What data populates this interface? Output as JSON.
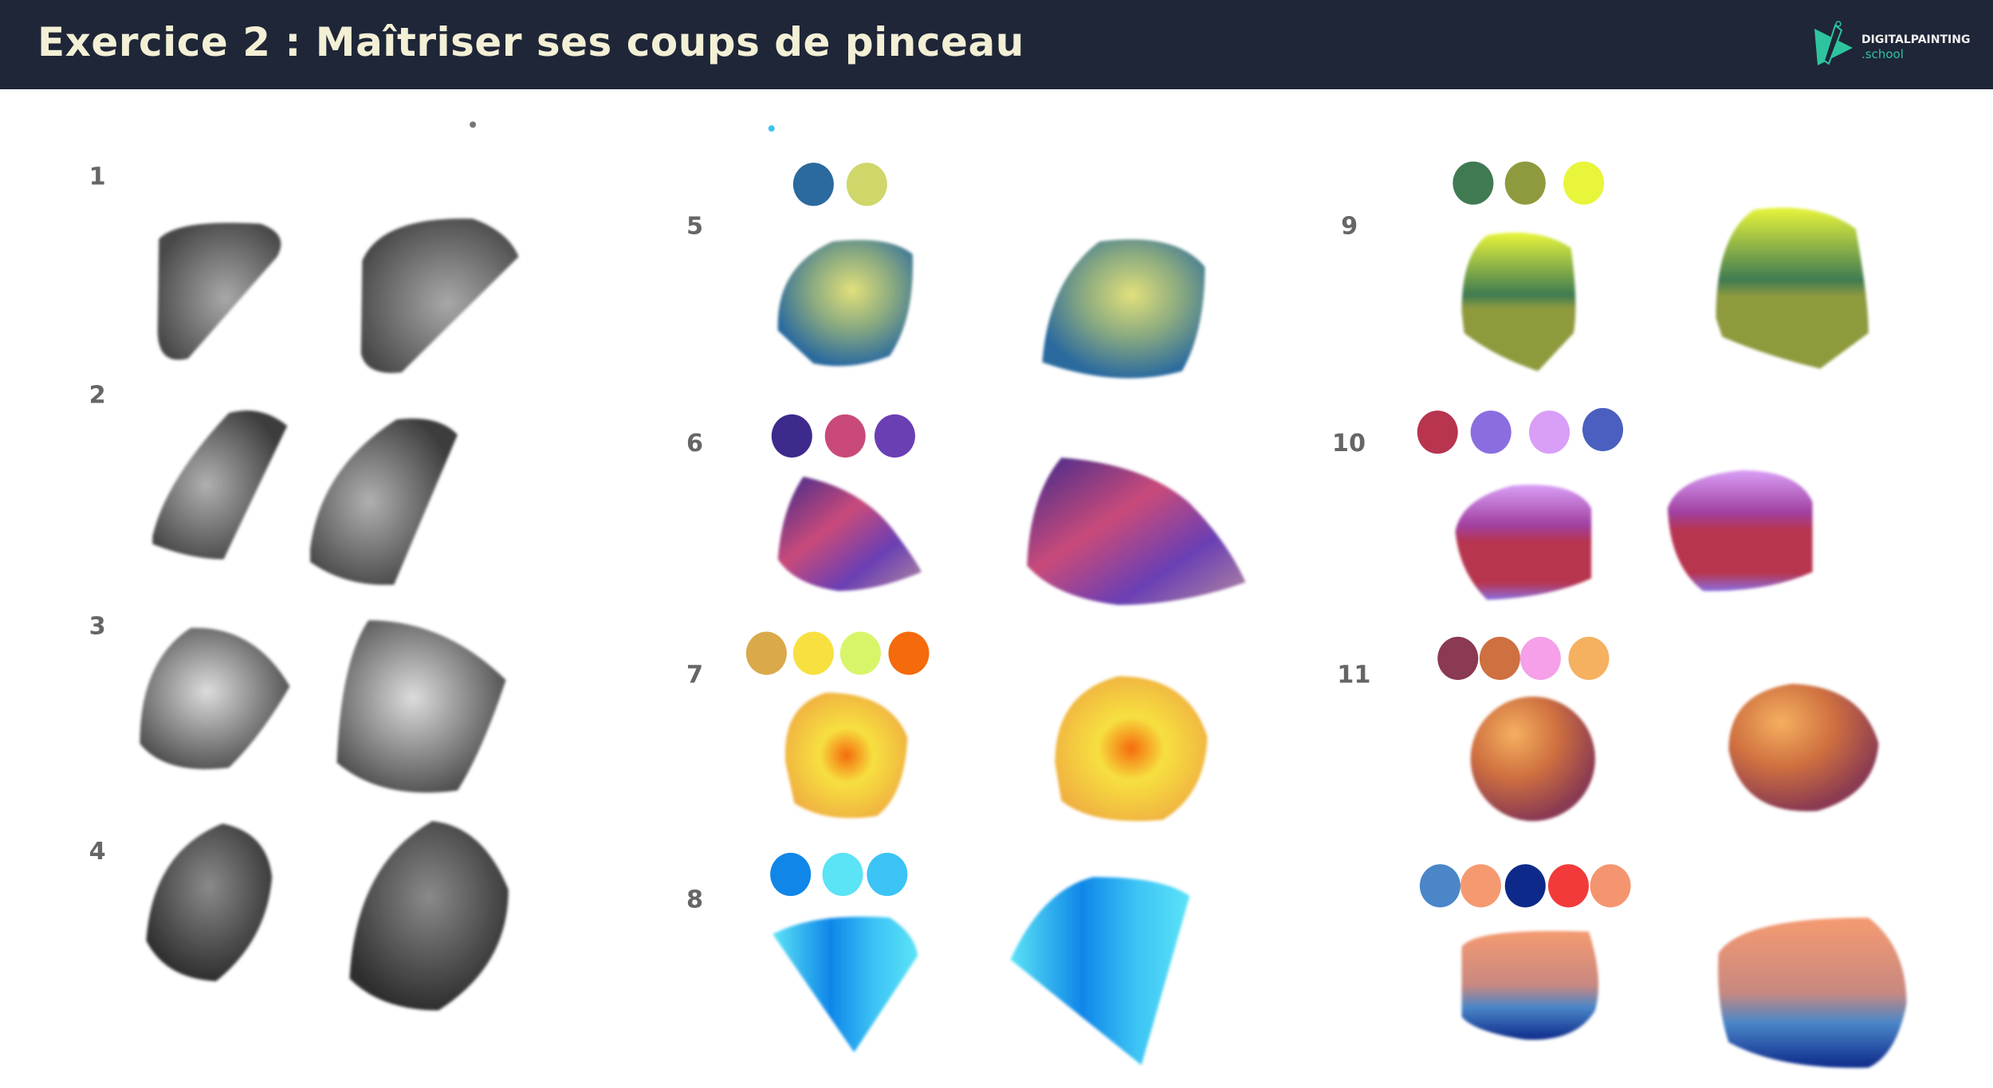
{
  "header": {
    "title": "Exercice 2 : Maîtriser ses coups de pinceau",
    "logo_name": "DIGITALPAINTING",
    "logo_suffix": ".school"
  },
  "exercises": [
    {
      "number": "1"
    },
    {
      "number": "2"
    },
    {
      "number": "3"
    },
    {
      "number": "4"
    },
    {
      "number": "5",
      "palette": [
        "#2b6a9e",
        "#cfd66a"
      ]
    },
    {
      "number": "6",
      "palette": [
        "#3e2a8c",
        "#c94a7a",
        "#6a3fb4"
      ]
    },
    {
      "number": "7",
      "palette": [
        "#d9a94a",
        "#f7e040",
        "#d8f56a",
        "#f46a0c"
      ]
    },
    {
      "number": "8",
      "palette": [
        "#0f86e8",
        "#5be3f6",
        "#3cc3f5"
      ]
    },
    {
      "number": "9",
      "palette": [
        "#3f7a52",
        "#8f9a3e",
        "#e8f53a"
      ]
    },
    {
      "number": "10",
      "palette": [
        "#b8344f",
        "#8a6ee0",
        "#d99ef7",
        "#4a5fc0"
      ]
    },
    {
      "number": "11",
      "palette": [
        "#8a3a52",
        "#cf7040",
        "#f5a0e8",
        "#f5b060"
      ]
    },
    {
      "palette": [
        "#4a86c8",
        "#f59a70",
        "#0d2a8a",
        "#f23a3a",
        "#f59570"
      ]
    }
  ],
  "colors": {
    "header_bg": "#1f2637",
    "title": "#f3f0d6",
    "logo_accent": "#2ec4a0"
  }
}
